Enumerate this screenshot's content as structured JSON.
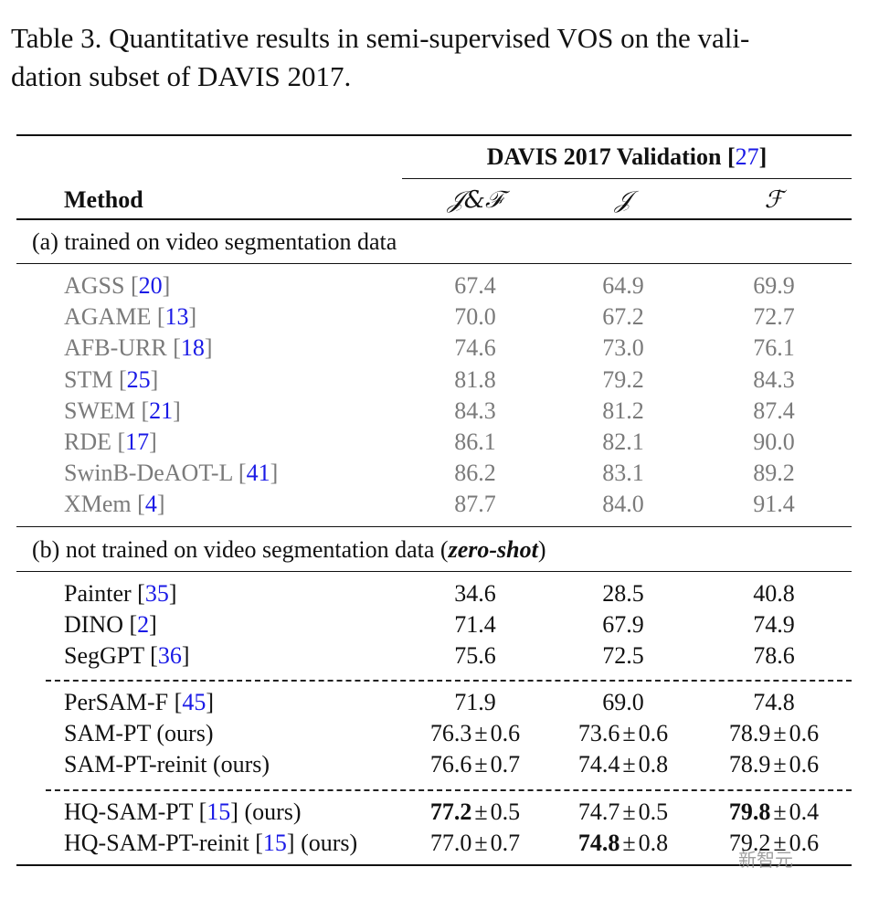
{
  "caption": {
    "line1": "Table 3. Quantitative results in semi-supervised VOS on the vali-",
    "line2": "dation subset of DAVIS 2017."
  },
  "header": {
    "group": "DAVIS 2017 Validation",
    "group_cite": "27",
    "method": "Method",
    "cols": [
      "𝒥&ℱ",
      "𝒥",
      "ℱ"
    ]
  },
  "section_a": {
    "label": "(a) trained on video segmentation data"
  },
  "section_b": {
    "label_prefix": "(b) not trained on video segmentation data (",
    "label_em": "zero-shot",
    "label_suffix": ")"
  },
  "rows_a": [
    {
      "name": "AGSS",
      "cite": "20",
      "suffix": "",
      "vals": [
        {
          "v": "67.4"
        },
        {
          "v": "64.9"
        },
        {
          "v": "69.9"
        }
      ]
    },
    {
      "name": "AGAME",
      "cite": "13",
      "suffix": "",
      "vals": [
        {
          "v": "70.0"
        },
        {
          "v": "67.2"
        },
        {
          "v": "72.7"
        }
      ]
    },
    {
      "name": "AFB-URR",
      "cite": "18",
      "suffix": "",
      "vals": [
        {
          "v": "74.6"
        },
        {
          "v": "73.0"
        },
        {
          "v": "76.1"
        }
      ]
    },
    {
      "name": "STM",
      "cite": "25",
      "suffix": "",
      "vals": [
        {
          "v": "81.8"
        },
        {
          "v": "79.2"
        },
        {
          "v": "84.3"
        }
      ]
    },
    {
      "name": "SWEM",
      "cite": "21",
      "suffix": "",
      "vals": [
        {
          "v": "84.3"
        },
        {
          "v": "81.2"
        },
        {
          "v": "87.4"
        }
      ]
    },
    {
      "name": "RDE",
      "cite": "17",
      "suffix": "",
      "vals": [
        {
          "v": "86.1"
        },
        {
          "v": "82.1"
        },
        {
          "v": "90.0"
        }
      ]
    },
    {
      "name": "SwinB-DeAOT-L",
      "cite": "41",
      "suffix": "",
      "vals": [
        {
          "v": "86.2"
        },
        {
          "v": "83.1"
        },
        {
          "v": "89.2"
        }
      ]
    },
    {
      "name": "XMem",
      "cite": "4",
      "suffix": "",
      "vals": [
        {
          "v": "87.7"
        },
        {
          "v": "84.0"
        },
        {
          "v": "91.4"
        }
      ]
    }
  ],
  "rows_b1": [
    {
      "name": "Painter",
      "cite": "35",
      "suffix": "",
      "vals": [
        {
          "v": "34.6"
        },
        {
          "v": "28.5"
        },
        {
          "v": "40.8"
        }
      ]
    },
    {
      "name": "DINO",
      "cite": "2",
      "suffix": "",
      "vals": [
        {
          "v": "71.4"
        },
        {
          "v": "67.9"
        },
        {
          "v": "74.9"
        }
      ]
    },
    {
      "name": "SegGPT",
      "cite": "36",
      "suffix": "",
      "vals": [
        {
          "v": "75.6"
        },
        {
          "v": "72.5"
        },
        {
          "v": "78.6"
        }
      ]
    }
  ],
  "rows_b2": [
    {
      "name": "PerSAM-F",
      "cite": "45",
      "suffix": "",
      "vals": [
        {
          "v": "71.9"
        },
        {
          "v": "69.0"
        },
        {
          "v": "74.8"
        }
      ]
    },
    {
      "name": "SAM-PT (ours)",
      "cite": "",
      "suffix": "",
      "vals": [
        {
          "v": "76.3",
          "pm": "0.6"
        },
        {
          "v": "73.6",
          "pm": "0.6"
        },
        {
          "v": "78.9",
          "pm": "0.6"
        }
      ]
    },
    {
      "name": "SAM-PT-reinit (ours)",
      "cite": "",
      "suffix": "",
      "vals": [
        {
          "v": "76.6",
          "pm": "0.7"
        },
        {
          "v": "74.4",
          "pm": "0.8"
        },
        {
          "v": "78.9",
          "pm": "0.6"
        }
      ]
    }
  ],
  "rows_b3": [
    {
      "name": "HQ-SAM-PT",
      "cite": "15",
      "suffix": " (ours)",
      "vals": [
        {
          "v": "77.2",
          "pm": "0.5",
          "bold": true
        },
        {
          "v": "74.7",
          "pm": "0.5"
        },
        {
          "v": "79.8",
          "pm": "0.4",
          "bold": true
        }
      ]
    },
    {
      "name": "HQ-SAM-PT-reinit",
      "cite": "15",
      "suffix": " (ours)",
      "vals": [
        {
          "v": "77.0",
          "pm": "0.7"
        },
        {
          "v": "74.8",
          "pm": "0.8",
          "bold": true
        },
        {
          "v": "79.2",
          "pm": "0.6"
        }
      ]
    }
  ],
  "pm_symbol": "±",
  "watermark": "新智元"
}
